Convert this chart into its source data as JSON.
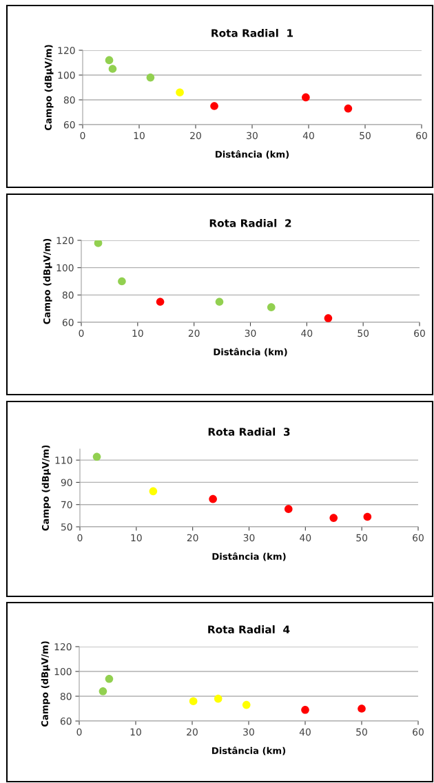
{
  "chart_data": [
    {
      "type": "scatter",
      "title": "Rota Radial  1",
      "xlabel": "Distância (km)",
      "ylabel": "Campo (dBµV/m)",
      "xlim": [
        0,
        60
      ],
      "xticks": [
        0,
        10,
        20,
        30,
        40,
        50,
        60
      ],
      "ylim": [
        60,
        120
      ],
      "yticks": [
        60,
        80,
        100,
        120
      ],
      "grid": "y",
      "marker": "circle",
      "x": [
        4.7,
        5.3,
        12,
        17.2,
        23.3,
        39.5,
        47
      ],
      "values": [
        112,
        105,
        98,
        86,
        75,
        82,
        73
      ],
      "colors": [
        "#92d050",
        "#92d050",
        "#92d050",
        "#ffff00",
        "#ff0000",
        "#ff0000",
        "#ff0000"
      ]
    },
    {
      "type": "scatter",
      "title": "Rota Radial  2",
      "xlabel": "Distância (km)",
      "ylabel": "Campo (dBµV/m)",
      "xlim": [
        0,
        60
      ],
      "xticks": [
        0,
        10,
        20,
        30,
        40,
        50,
        60
      ],
      "ylim": [
        60,
        120
      ],
      "yticks": [
        60,
        80,
        100,
        120
      ],
      "grid": "y",
      "marker": "circle",
      "x": [
        3,
        7.2,
        14,
        24.5,
        33.7,
        43.8
      ],
      "values": [
        118,
        90,
        75,
        75,
        71,
        63
      ],
      "colors": [
        "#92d050",
        "#92d050",
        "#ff0000",
        "#92d050",
        "#92d050",
        "#ff0000"
      ]
    },
    {
      "type": "scatter",
      "title": "Rota Radial  3",
      "xlabel": "Distância (km)",
      "ylabel": "Campo (dBµV/m)",
      "xlim": [
        0,
        60
      ],
      "xticks": [
        0,
        10,
        20,
        30,
        40,
        50,
        60
      ],
      "ylim": [
        50,
        120
      ],
      "yticks": [
        50,
        70,
        90,
        110
      ],
      "grid": "y",
      "marker": "circle",
      "x": [
        3,
        13,
        23.6,
        37,
        45,
        51
      ],
      "values": [
        113,
        82,
        75,
        66,
        58,
        59
      ],
      "colors": [
        "#92d050",
        "#ffff00",
        "#ff0000",
        "#ff0000",
        "#ff0000",
        "#ff0000"
      ]
    },
    {
      "type": "scatter",
      "title": "Rota Radial  4",
      "xlabel": "Distância (km)",
      "ylabel": "Campo (dBµV/m)",
      "xlim": [
        0,
        60
      ],
      "xticks": [
        0,
        10,
        20,
        30,
        40,
        50,
        60
      ],
      "ylim": [
        60,
        120
      ],
      "yticks": [
        60,
        80,
        100,
        120
      ],
      "grid": "y",
      "marker": "circle",
      "x": [
        4.2,
        5.3,
        20.2,
        24.6,
        29.6,
        40,
        50
      ],
      "values": [
        84,
        94,
        76,
        78,
        73,
        69,
        70
      ],
      "colors": [
        "#92d050",
        "#92d050",
        "#ffff00",
        "#ffff00",
        "#ffff00",
        "#ff0000",
        "#ff0000"
      ]
    }
  ]
}
